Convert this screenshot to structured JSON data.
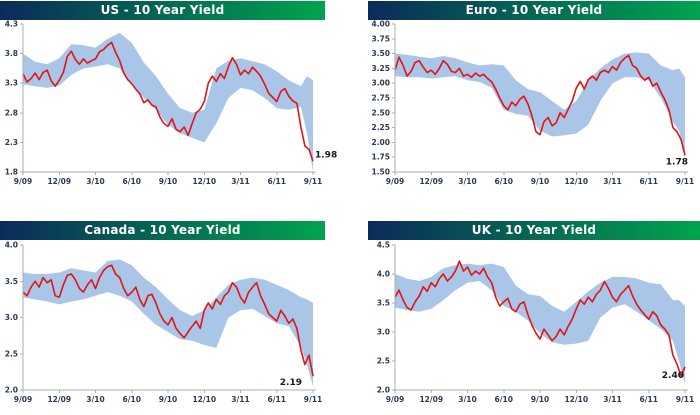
{
  "page": {
    "background": "#ffffff"
  },
  "colors": {
    "band_fill": "#a9c5e8",
    "line_stroke": "#e21414",
    "axis_stroke": "#aeaeae",
    "tick_label": "#2b3a55",
    "end_label": "#1a1a1a",
    "title_text": "#ffffff",
    "title_gradient_left": "#0a2b59",
    "title_gradient_right": "#00a44f"
  },
  "x_axis": {
    "tick_labels": [
      "9/09",
      "12/09",
      "3/10",
      "6/10",
      "9/10",
      "12/10",
      "3/11",
      "6/11",
      "9/11"
    ],
    "span_months": 24
  },
  "chart_data": [
    {
      "id": "us",
      "type": "line",
      "title": "US - 10 Year Yield",
      "ylim": [
        4.3,
        1.8
      ],
      "y_tick_labels": [
        "4.3",
        "3.8",
        "3.3",
        "2.8",
        "2.3",
        "1.8"
      ],
      "end_label": "1.98",
      "end_value": 1.98,
      "series": [
        {
          "name": "yield-line",
          "color": "#e21414",
          "values": [
            3.46,
            3.32,
            3.38,
            3.47,
            3.36,
            3.48,
            3.52,
            3.34,
            3.25,
            3.35,
            3.48,
            3.75,
            3.84,
            3.7,
            3.62,
            3.71,
            3.64,
            3.68,
            3.71,
            3.83,
            3.87,
            3.94,
            3.99,
            3.82,
            3.68,
            3.47,
            3.36,
            3.29,
            3.2,
            3.12,
            2.97,
            3.02,
            2.93,
            2.9,
            2.73,
            2.62,
            2.57,
            2.7,
            2.52,
            2.48,
            2.56,
            2.42,
            2.62,
            2.8,
            2.86,
            2.99,
            3.3,
            3.42,
            3.33,
            3.46,
            3.38,
            3.58,
            3.73,
            3.62,
            3.44,
            3.52,
            3.46,
            3.57,
            3.5,
            3.42,
            3.28,
            3.13,
            3.06,
            2.99,
            3.16,
            3.21,
            3.08,
            3.0,
            2.96,
            2.56,
            2.24,
            2.18,
            1.98
          ]
        },
        {
          "name": "range-band",
          "color": "#a9c5e8",
          "points_m_lo_hi": [
            [
              0,
              3.28,
              3.8
            ],
            [
              1,
              3.25,
              3.66
            ],
            [
              2,
              3.22,
              3.62
            ],
            [
              3,
              3.26,
              3.72
            ],
            [
              4,
              3.44,
              3.96
            ],
            [
              5,
              3.55,
              3.94
            ],
            [
              6,
              3.58,
              3.9
            ],
            [
              7,
              3.62,
              4.05
            ],
            [
              8,
              3.55,
              4.15
            ],
            [
              9,
              3.28,
              3.98
            ],
            [
              10,
              3.05,
              3.65
            ],
            [
              11,
              2.85,
              3.42
            ],
            [
              12,
              2.6,
              3.12
            ],
            [
              13,
              2.45,
              2.88
            ],
            [
              14,
              2.38,
              2.8
            ],
            [
              15,
              2.3,
              2.85
            ],
            [
              16,
              2.62,
              3.55
            ],
            [
              17,
              3.05,
              3.68
            ],
            [
              18,
              3.22,
              3.72
            ],
            [
              19,
              3.18,
              3.67
            ],
            [
              20,
              3.05,
              3.62
            ],
            [
              21,
              2.88,
              3.5
            ],
            [
              22,
              2.85,
              3.35
            ],
            [
              23,
              2.9,
              3.25
            ],
            [
              23.5,
              2.45,
              3.42
            ],
            [
              24,
              1.8,
              3.35
            ]
          ]
        }
      ]
    },
    {
      "id": "euro",
      "type": "line",
      "title": "Euro - 10 Year Yield",
      "ylim": [
        4.0,
        1.5
      ],
      "y_tick_labels": [
        "4.00",
        "3.75",
        "3.50",
        "3.25",
        "3.00",
        "2.75",
        "2.50",
        "2.25",
        "2.00",
        "1.75",
        "1.50"
      ],
      "end_label": "1.78",
      "end_value": 1.78,
      "series": [
        {
          "name": "yield-line",
          "color": "#e21414",
          "values": [
            3.22,
            3.44,
            3.3,
            3.12,
            3.2,
            3.35,
            3.38,
            3.27,
            3.18,
            3.22,
            3.15,
            3.25,
            3.38,
            3.32,
            3.2,
            3.18,
            3.25,
            3.12,
            3.15,
            3.1,
            3.17,
            3.12,
            3.15,
            3.08,
            3.02,
            2.9,
            2.75,
            2.62,
            2.55,
            2.68,
            2.62,
            2.73,
            2.78,
            2.65,
            2.45,
            2.18,
            2.13,
            2.35,
            2.42,
            2.28,
            2.33,
            2.5,
            2.42,
            2.56,
            2.7,
            2.92,
            3.03,
            2.9,
            3.06,
            3.12,
            3.05,
            3.18,
            3.22,
            3.18,
            3.28,
            3.22,
            3.35,
            3.42,
            3.47,
            3.3,
            3.25,
            3.12,
            3.05,
            3.1,
            2.95,
            3.0,
            2.85,
            2.72,
            2.55,
            2.25,
            2.18,
            2.05,
            1.78
          ]
        },
        {
          "name": "range-band",
          "color": "#a9c5e8",
          "points_m_lo_hi": [
            [
              0,
              3.12,
              3.5
            ],
            [
              1,
              3.1,
              3.48
            ],
            [
              2,
              3.1,
              3.45
            ],
            [
              3,
              3.08,
              3.42
            ],
            [
              4,
              3.1,
              3.46
            ],
            [
              5,
              3.12,
              3.42
            ],
            [
              6,
              3.05,
              3.35
            ],
            [
              7,
              3.02,
              3.3
            ],
            [
              8,
              2.92,
              3.32
            ],
            [
              9,
              2.55,
              3.3
            ],
            [
              10,
              2.48,
              3.05
            ],
            [
              11,
              2.45,
              2.9
            ],
            [
              12,
              2.2,
              2.85
            ],
            [
              13,
              2.1,
              2.7
            ],
            [
              14,
              2.12,
              2.55
            ],
            [
              15,
              2.15,
              2.7
            ],
            [
              16,
              2.3,
              3.05
            ],
            [
              17,
              2.7,
              3.25
            ],
            [
              18,
              3.0,
              3.4
            ],
            [
              19,
              3.1,
              3.5
            ],
            [
              20,
              3.1,
              3.52
            ],
            [
              21,
              3.05,
              3.5
            ],
            [
              22,
              2.75,
              3.3
            ],
            [
              23,
              2.35,
              3.22
            ],
            [
              23.5,
              2.2,
              3.25
            ],
            [
              24,
              1.75,
              3.1
            ]
          ]
        }
      ]
    },
    {
      "id": "canada",
      "type": "line",
      "title": "Canada - 10 Year Yield",
      "ylim": [
        4.0,
        2.0
      ],
      "y_tick_labels": [
        "4.0",
        "3.5",
        "3.0",
        "2.5",
        "2.0"
      ],
      "end_label": "2.19",
      "end_value": 2.19,
      "series": [
        {
          "name": "yield-line",
          "color": "#e21414",
          "values": [
            3.35,
            3.3,
            3.42,
            3.5,
            3.42,
            3.55,
            3.48,
            3.52,
            3.3,
            3.28,
            3.45,
            3.58,
            3.6,
            3.52,
            3.4,
            3.35,
            3.45,
            3.52,
            3.4,
            3.55,
            3.65,
            3.7,
            3.72,
            3.6,
            3.55,
            3.4,
            3.3,
            3.35,
            3.42,
            3.25,
            3.15,
            3.3,
            3.32,
            3.2,
            3.05,
            2.95,
            2.9,
            3.0,
            2.85,
            2.78,
            2.72,
            2.8,
            2.88,
            2.95,
            2.85,
            3.1,
            3.2,
            3.12,
            3.25,
            3.18,
            3.3,
            3.35,
            3.48,
            3.42,
            3.28,
            3.2,
            3.35,
            3.42,
            3.48,
            3.3,
            3.18,
            3.05,
            3.0,
            2.95,
            3.1,
            3.02,
            2.92,
            2.98,
            2.85,
            2.55,
            2.35,
            2.48,
            2.19
          ]
        },
        {
          "name": "range-band",
          "color": "#a9c5e8",
          "points_m_lo_hi": [
            [
              0,
              3.28,
              3.62
            ],
            [
              1,
              3.25,
              3.6
            ],
            [
              2,
              3.22,
              3.6
            ],
            [
              3,
              3.18,
              3.62
            ],
            [
              4,
              3.22,
              3.68
            ],
            [
              5,
              3.25,
              3.65
            ],
            [
              6,
              3.3,
              3.62
            ],
            [
              7,
              3.35,
              3.78
            ],
            [
              8,
              3.3,
              3.8
            ],
            [
              9,
              3.22,
              3.72
            ],
            [
              10,
              3.05,
              3.55
            ],
            [
              11,
              2.9,
              3.42
            ],
            [
              12,
              2.8,
              3.25
            ],
            [
              13,
              2.7,
              3.1
            ],
            [
              14,
              2.68,
              3.02
            ],
            [
              15,
              2.62,
              3.1
            ],
            [
              16,
              2.58,
              3.28
            ],
            [
              17,
              3.0,
              3.45
            ],
            [
              18,
              3.1,
              3.52
            ],
            [
              19,
              3.12,
              3.55
            ],
            [
              20,
              3.02,
              3.52
            ],
            [
              21,
              2.92,
              3.45
            ],
            [
              22,
              2.88,
              3.38
            ],
            [
              23,
              2.6,
              3.28
            ],
            [
              23.5,
              2.35,
              3.25
            ],
            [
              24,
              2.05,
              3.2
            ]
          ]
        }
      ]
    },
    {
      "id": "uk",
      "type": "line",
      "title": "UK - 10 Year Yield",
      "ylim": [
        4.5,
        2.0
      ],
      "y_tick_labels": [
        "4.5",
        "4.0",
        "3.5",
        "3.0",
        "2.5",
        "2.0"
      ],
      "end_label": "2.40",
      "end_value": 2.4,
      "series": [
        {
          "name": "yield-line",
          "color": "#e21414",
          "values": [
            3.6,
            3.72,
            3.55,
            3.42,
            3.38,
            3.52,
            3.62,
            3.78,
            3.7,
            3.85,
            3.78,
            3.92,
            4.0,
            3.88,
            3.95,
            4.05,
            4.22,
            4.05,
            4.12,
            3.98,
            4.05,
            4.0,
            4.1,
            3.95,
            3.85,
            3.6,
            3.45,
            3.52,
            3.58,
            3.4,
            3.35,
            3.48,
            3.52,
            3.3,
            3.12,
            2.98,
            2.88,
            3.05,
            2.95,
            2.85,
            2.92,
            3.05,
            2.95,
            3.1,
            3.22,
            3.4,
            3.55,
            3.48,
            3.6,
            3.52,
            3.65,
            3.72,
            3.87,
            3.75,
            3.6,
            3.52,
            3.65,
            3.72,
            3.8,
            3.62,
            3.48,
            3.38,
            3.3,
            3.22,
            3.35,
            3.28,
            3.12,
            3.05,
            2.95,
            2.6,
            2.45,
            2.24,
            2.4
          ]
        },
        {
          "name": "range-band",
          "color": "#a9c5e8",
          "points_m_lo_hi": [
            [
              0,
              3.42,
              4.0
            ],
            [
              1,
              3.38,
              3.92
            ],
            [
              2,
              3.35,
              3.88
            ],
            [
              3,
              3.4,
              3.95
            ],
            [
              4,
              3.55,
              4.1
            ],
            [
              5,
              3.72,
              4.15
            ],
            [
              6,
              3.85,
              4.18
            ],
            [
              7,
              3.88,
              4.15
            ],
            [
              8,
              3.72,
              4.18
            ],
            [
              9,
              3.45,
              4.12
            ],
            [
              10,
              3.35,
              3.8
            ],
            [
              11,
              3.2,
              3.65
            ],
            [
              12,
              2.98,
              3.62
            ],
            [
              13,
              2.82,
              3.45
            ],
            [
              14,
              2.78,
              3.35
            ],
            [
              15,
              2.8,
              3.52
            ],
            [
              16,
              2.85,
              3.7
            ],
            [
              17,
              3.25,
              3.85
            ],
            [
              18,
              3.42,
              3.95
            ],
            [
              19,
              3.48,
              3.95
            ],
            [
              20,
              3.35,
              3.92
            ],
            [
              21,
              3.2,
              3.85
            ],
            [
              22,
              3.05,
              3.82
            ],
            [
              23,
              2.85,
              3.55
            ],
            [
              23.5,
              2.5,
              3.55
            ],
            [
              24,
              2.1,
              3.45
            ]
          ]
        }
      ]
    }
  ]
}
